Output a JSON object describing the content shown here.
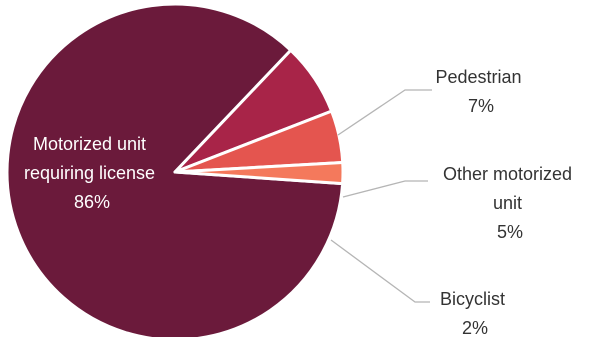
{
  "chart_data": {
    "type": "pie",
    "title": "",
    "slices": [
      {
        "label_lines": [
          "Motorized unit",
          "requiring license"
        ],
        "value": 86,
        "value_label": "86%",
        "color": "#6b1a3b"
      },
      {
        "label_lines": [
          "Pedestrian"
        ],
        "value": 7,
        "value_label": "7%",
        "color": "#a82448"
      },
      {
        "label_lines": [
          "Other motorized",
          "unit"
        ],
        "value": 5,
        "value_label": "5%",
        "color": "#e4554f"
      },
      {
        "label_lines": [
          "Bicyclist"
        ],
        "value": 2,
        "value_label": "2%",
        "color": "#f4795c"
      }
    ],
    "slice_border_color": "#ffffff",
    "leader_line_color": "#b5b5b5"
  }
}
